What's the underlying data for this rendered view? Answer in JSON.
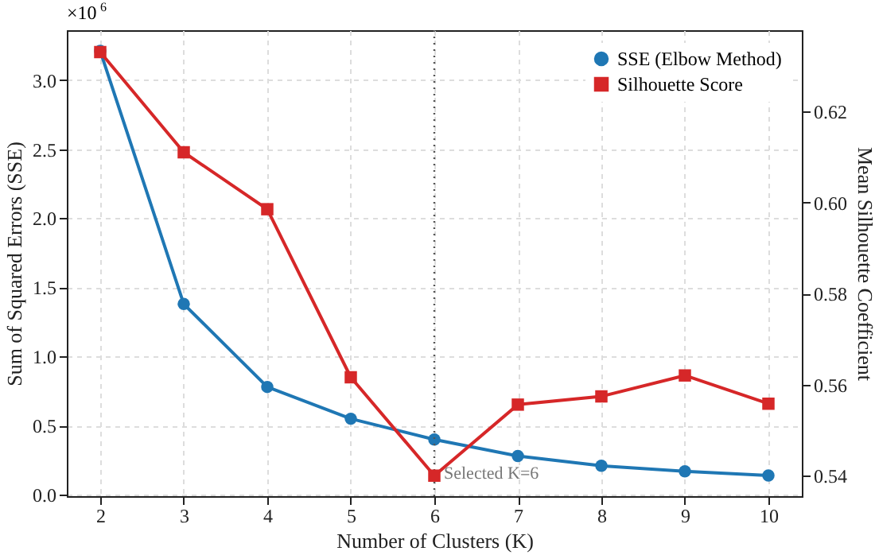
{
  "chart_data": {
    "type": "line",
    "xlabel": "Number of Clusters (K)",
    "ylabel": "Sum of Squared Errors (SSE)",
    "y2label": "Mean Silhouette Coefficient",
    "x": [
      2,
      3,
      4,
      5,
      6,
      7,
      8,
      9,
      10
    ],
    "series": [
      {
        "name": "SSE (Elbow Method)",
        "color": "#1f77b4",
        "marker": "circle",
        "values": [
          3.21,
          1.38,
          0.78,
          0.55,
          0.4,
          0.28,
          0.21,
          0.17,
          0.14
        ]
      },
      {
        "name": "Silhouette Score",
        "color": "#d62728",
        "marker": "square",
        "axis": "y2",
        "values": [
          0.633,
          0.611,
          0.5985,
          0.5616,
          0.54,
          0.5556,
          0.5574,
          0.562,
          0.5558
        ]
      }
    ],
    "xlim": [
      1.6,
      10.4
    ],
    "xticks": [
      2,
      3,
      4,
      5,
      6,
      7,
      8,
      9,
      10
    ],
    "ylim": [
      -0.01,
      3.36
    ],
    "yticks": [
      {
        "value": 0,
        "label": "0.0"
      },
      0.5,
      {
        "value": 1,
        "label": "1.0"
      },
      1.5,
      {
        "value": 2,
        "label": "2.0"
      },
      2.5,
      {
        "value": 3,
        "label": "3.0"
      }
    ],
    "y2lim": [
      0.5355,
      0.6378
    ],
    "y2ticks": [
      0.54,
      0.56,
      0.58,
      {
        "value": 0.6,
        "label": "0.60"
      },
      0.62
    ],
    "ref_lines": [
      {
        "axis": "x",
        "value": 6,
        "label": "Selected K=6",
        "color": "#555555",
        "line_style": "dotted"
      }
    ],
    "annotations": [
      "×10$^{6}$"
    ],
    "grid": true,
    "legend": "top right",
    "line_style": "solid"
  }
}
